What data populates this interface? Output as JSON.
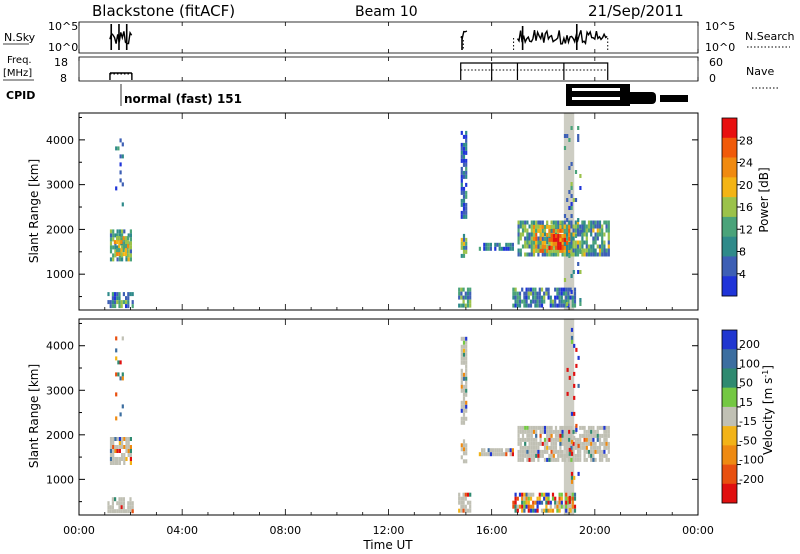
{
  "header": {
    "station": "Blackstone (fitACF)",
    "beam": "Beam 10",
    "date": "21/Sep/2011"
  },
  "panels": {
    "nsky_label": "N.Sky",
    "nsky_ticks": [
      "10^5",
      "10^0"
    ],
    "nsearch_label": "N.Search",
    "nsearch_ticks": [
      "10^5",
      "10^0"
    ],
    "freq_label_1": "Freq.",
    "freq_label_2": "[MHz]",
    "freq_ticks": [
      "18",
      "8"
    ],
    "nave_label": "Nave",
    "nave_ticks": [
      "60",
      "0"
    ],
    "cpid_label": "CPID",
    "cpid_text": "normal (fast) 151"
  },
  "colors": {
    "power": [
      "#1f34d8",
      "#3d5fb5",
      "#2f8a8a",
      "#4aa37a",
      "#9bc24a",
      "#f3b415",
      "#f08a10",
      "#f05a0a",
      "#e81010"
    ],
    "velocity": [
      "#2036d0",
      "#3c6ea0",
      "#2f8a70",
      "#74c843",
      "#c0c0b4",
      "#f2b318",
      "#ee8a12",
      "#e85010",
      "#e01010"
    ],
    "gray": "#c0c0b4"
  },
  "chart_data": [
    {
      "type": "heatmap",
      "name": "power",
      "ylabel": "Slant Range [km]",
      "yticks": [
        1000,
        2000,
        3000,
        4000
      ],
      "ylim": [
        200,
        4600
      ],
      "xlim": [
        0,
        24
      ],
      "colorbar_label": "Power [dB]",
      "colorbar_ticks": [
        4,
        8,
        12,
        16,
        20,
        24,
        28
      ],
      "colorbar_range": [
        0,
        32
      ],
      "blocks": [
        {
          "t0": 1.2,
          "t1": 2.05,
          "r0": 1350,
          "r1": 2000,
          "level": 0.35
        },
        {
          "t0": 1.35,
          "t1": 1.9,
          "r0": 1450,
          "r1": 1850,
          "level": 0.55
        },
        {
          "t0": 14.8,
          "t1": 15.05,
          "r0": 1450,
          "r1": 1900,
          "level": 0.4
        },
        {
          "t0": 17.0,
          "t1": 20.5,
          "r0": 1400,
          "r1": 2200,
          "level": 0.35
        },
        {
          "t0": 17.6,
          "t1": 19.0,
          "r0": 1500,
          "r1": 2100,
          "level": 0.6
        },
        {
          "t0": 18.2,
          "t1": 18.8,
          "r0": 1600,
          "r1": 1900,
          "level": 0.85
        },
        {
          "t0": 15.5,
          "t1": 16.8,
          "r0": 1550,
          "r1": 1700,
          "level": 0.2
        },
        {
          "t0": 16.8,
          "t1": 19.2,
          "r0": 280,
          "r1": 700,
          "level": 0.25
        },
        {
          "t0": 1.1,
          "t1": 2.1,
          "r0": 300,
          "r1": 600,
          "level": 0.3
        },
        {
          "t0": 14.7,
          "t1": 15.2,
          "r0": 300,
          "r1": 700,
          "level": 0.3
        },
        {
          "t0": 1.4,
          "t1": 1.7,
          "r0": 2200,
          "r1": 4300,
          "level": 0.15
        },
        {
          "t0": 14.8,
          "t1": 15.0,
          "r0": 2300,
          "r1": 4200,
          "level": 0.15
        },
        {
          "t0": 18.8,
          "t1": 19.4,
          "r0": 300,
          "r1": 4400,
          "level": 0.3
        }
      ],
      "gray_band": {
        "t0": 18.8,
        "t1": 19.2
      }
    },
    {
      "type": "heatmap",
      "name": "velocity",
      "ylabel": "Slant Range [km]",
      "yticks": [
        1000,
        2000,
        3000,
        4000
      ],
      "ylim": [
        200,
        4600
      ],
      "xlim": [
        0,
        24
      ],
      "xticks": [
        "00:00",
        "04:00",
        "08:00",
        "12:00",
        "16:00",
        "20:00",
        "00:00"
      ],
      "xlabel": "Time UT",
      "colorbar_label": "Velocity [m s^-1]",
      "colorbar_ticks": [
        "200",
        "100",
        "50",
        "15",
        "-15",
        "-50",
        "-100",
        "-200"
      ],
      "blocks": [
        {
          "t0": 1.2,
          "t1": 2.05,
          "r0": 1400,
          "r1": 1950,
          "level": 0.5
        },
        {
          "t0": 14.8,
          "t1": 15.05,
          "r0": 1450,
          "r1": 1900,
          "level": 0.5
        },
        {
          "t0": 17.0,
          "t1": 20.5,
          "r0": 1450,
          "r1": 2200,
          "level": 0.5
        },
        {
          "t0": 15.5,
          "t1": 16.8,
          "r0": 1550,
          "r1": 1700,
          "level": 0.5
        },
        {
          "t0": 16.8,
          "t1": 19.2,
          "r0": 280,
          "r1": 700,
          "level": 0.35
        },
        {
          "t0": 1.1,
          "t1": 2.1,
          "r0": 300,
          "r1": 600,
          "level": 0.5
        },
        {
          "t0": 14.7,
          "t1": 15.2,
          "r0": 300,
          "r1": 700,
          "level": 0.5
        },
        {
          "t0": 1.4,
          "t1": 1.7,
          "r0": 2200,
          "r1": 4300,
          "level": 0.2
        },
        {
          "t0": 14.8,
          "t1": 15.0,
          "r0": 2300,
          "r1": 4200,
          "level": 0.5
        },
        {
          "t0": 18.9,
          "t1": 19.4,
          "r0": 300,
          "r1": 4400,
          "level": 0.85
        }
      ],
      "gray_band": {
        "t0": 18.8,
        "t1": 19.2
      }
    }
  ]
}
